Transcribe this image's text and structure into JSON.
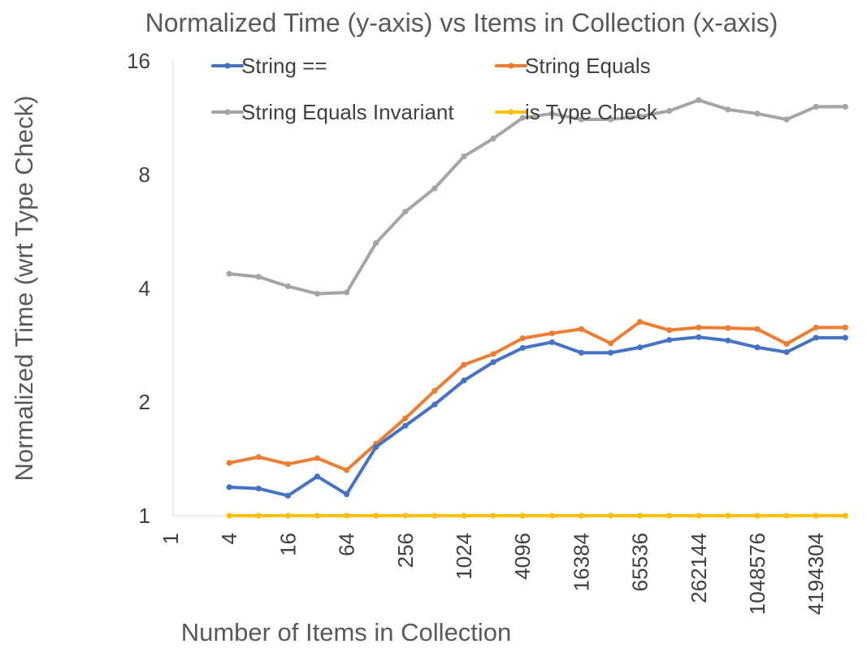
{
  "chart_data": {
    "type": "line",
    "title": "Normalized Time (y-axis) vs Items in Collection (x-axis)",
    "xlabel": "Number of Items in Collection",
    "ylabel": "Normalized Time (wrt Type Check)",
    "x_scale": "log2",
    "y_scale": "log2",
    "x_tick_labels": [
      "1",
      "4",
      "16",
      "64",
      "256",
      "1024",
      "4096",
      "16384",
      "65536",
      "262144",
      "1048576",
      "4194304"
    ],
    "y_tick_labels": [
      "1",
      "2",
      "4",
      "8",
      "16"
    ],
    "ylim": [
      1,
      16
    ],
    "grid": false,
    "legend_position": "top",
    "x": [
      4,
      8,
      16,
      32,
      64,
      128,
      256,
      512,
      1024,
      2048,
      4096,
      8192,
      16384,
      32768,
      65536,
      131072,
      262144,
      524288,
      1048576,
      2097152,
      4194304,
      8388608
    ],
    "series": [
      {
        "name": "String ==",
        "color": "#4472C4",
        "values": [
          1.19,
          1.18,
          1.13,
          1.27,
          1.14,
          1.52,
          1.73,
          1.97,
          2.28,
          2.55,
          2.78,
          2.88,
          2.7,
          2.7,
          2.79,
          2.92,
          2.97,
          2.91,
          2.79,
          2.71,
          2.96,
          2.96
        ]
      },
      {
        "name": "String Equals",
        "color": "#ED7D31",
        "values": [
          1.38,
          1.43,
          1.37,
          1.42,
          1.32,
          1.55,
          1.81,
          2.14,
          2.51,
          2.68,
          2.95,
          3.04,
          3.12,
          2.86,
          3.26,
          3.1,
          3.15,
          3.14,
          3.12,
          2.85,
          3.15,
          3.15
        ]
      },
      {
        "name": "String Equals Invariant",
        "color": "#A5A5A5",
        "values": [
          4.37,
          4.29,
          4.05,
          3.87,
          3.9,
          5.27,
          6.38,
          7.36,
          8.94,
          9.97,
          11.3,
          11.6,
          11.2,
          11.2,
          11.4,
          11.8,
          12.6,
          11.9,
          11.6,
          11.2,
          12.1,
          12.1
        ]
      },
      {
        "name": "is Type Check",
        "color": "#FFC000",
        "values": [
          1,
          1,
          1,
          1,
          1,
          1,
          1,
          1,
          1,
          1,
          1,
          1,
          1,
          1,
          1,
          1,
          1,
          1,
          1,
          1,
          1,
          1
        ]
      }
    ]
  }
}
